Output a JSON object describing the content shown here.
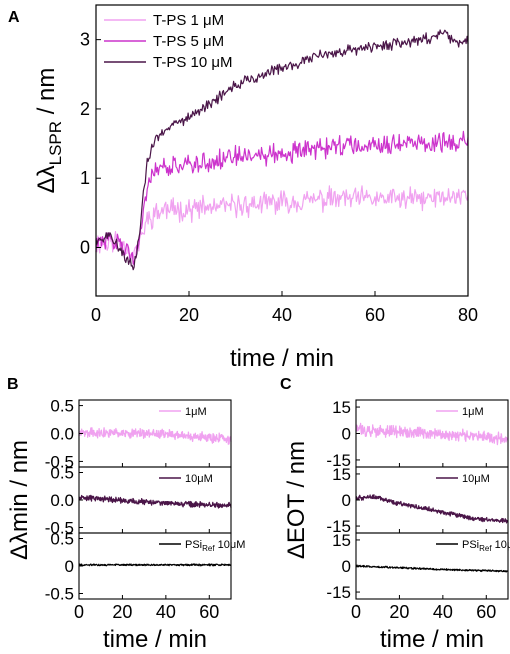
{
  "chart_data": [
    {
      "panel": "A",
      "type": "line",
      "xlabel": "time / min",
      "ylabel_main": "Δλ",
      "ylabel_sub": "LSPR",
      "ylabel_unit": " / nm",
      "xlim": [
        0,
        80
      ],
      "ylim": [
        -0.7,
        3.5
      ],
      "xticks": [
        0,
        20,
        40,
        60,
        80
      ],
      "yticks": [
        0,
        1,
        2,
        3
      ],
      "legend_position": "top-left",
      "series": [
        {
          "name": "T-PS 1 μM",
          "color": "#f0a2f0",
          "points": [
            [
              0,
              0.05
            ],
            [
              5,
              0.1
            ],
            [
              8,
              -0.1
            ],
            [
              9,
              0
            ],
            [
              11,
              0.4
            ],
            [
              13,
              0.5
            ],
            [
              15,
              0.55
            ],
            [
              20,
              0.55
            ],
            [
              30,
              0.6
            ],
            [
              40,
              0.65
            ],
            [
              50,
              0.7
            ],
            [
              60,
              0.7
            ],
            [
              70,
              0.7
            ],
            [
              80,
              0.75
            ]
          ],
          "noise": 0.2
        },
        {
          "name": "T-PS 5 μM",
          "color": "#cc33cc",
          "points": [
            [
              0,
              0.05
            ],
            [
              5,
              0.1
            ],
            [
              8,
              -0.1
            ],
            [
              9,
              0
            ],
            [
              11,
              0.85
            ],
            [
              13,
              1.1
            ],
            [
              16,
              1.15
            ],
            [
              20,
              1.2
            ],
            [
              30,
              1.3
            ],
            [
              40,
              1.35
            ],
            [
              50,
              1.45
            ],
            [
              60,
              1.5
            ],
            [
              70,
              1.5
            ],
            [
              80,
              1.55
            ]
          ],
          "noise": 0.18
        },
        {
          "name": "T-PS 10 μM",
          "color": "#4a1548",
          "points": [
            [
              0,
              0.1
            ],
            [
              3,
              0.15
            ],
            [
              6,
              -0.1
            ],
            [
              8,
              -0.3
            ],
            [
              9,
              0
            ],
            [
              11,
              1.25
            ],
            [
              13,
              1.6
            ],
            [
              16,
              1.75
            ],
            [
              20,
              1.9
            ],
            [
              25,
              2.1
            ],
            [
              30,
              2.35
            ],
            [
              40,
              2.6
            ],
            [
              50,
              2.8
            ],
            [
              60,
              2.9
            ],
            [
              70,
              3.0
            ],
            [
              75,
              3.1
            ],
            [
              78,
              2.95
            ],
            [
              80,
              3.0
            ]
          ],
          "noise": 0.1
        }
      ]
    },
    {
      "panel": "B",
      "type": "line",
      "xlabel": "time / min",
      "ylabel_main": "Δλmin / nm",
      "xlim": [
        0,
        70
      ],
      "xticks": [
        0,
        20,
        40,
        60
      ],
      "subplots": [
        {
          "label": "1μM",
          "color": "#f0a2f0",
          "ylim": [
            -0.6,
            0.6
          ],
          "yticks": [
            0.5,
            0.0,
            -0.5
          ],
          "yticklabels": [
            "0.5",
            "0.0",
            "-0.5"
          ],
          "points": [
            [
              0,
              0.02
            ],
            [
              35,
              0.0
            ],
            [
              70,
              -0.1
            ]
          ],
          "noise": 0.1
        },
        {
          "label": "10μM",
          "color": "#4a1548",
          "ylim": [
            -0.6,
            0.6
          ],
          "yticks": [
            0.5,
            0.0,
            -0.5
          ],
          "yticklabels": [
            "0.5",
            "0.0",
            "-0.5"
          ],
          "points": [
            [
              0,
              0.05
            ],
            [
              35,
              -0.05
            ],
            [
              70,
              -0.1
            ]
          ],
          "noise": 0.06
        },
        {
          "label": "PSi",
          "label_sub": "Ref",
          "label_tail": " 10μM",
          "color": "#000000",
          "ylim": [
            -0.6,
            0.6
          ],
          "yticks": [
            0.5,
            0,
            -0.5
          ],
          "yticklabels": [
            "0.5",
            "0",
            "-0.5"
          ],
          "points": [
            [
              0,
              0.02
            ],
            [
              70,
              0.02
            ]
          ],
          "noise": 0.02
        }
      ]
    },
    {
      "panel": "C",
      "type": "line",
      "xlabel": "time / min",
      "ylabel_main": "ΔEOT / nm",
      "xlim": [
        0,
        70
      ],
      "xticks": [
        0,
        20,
        40,
        60
      ],
      "subplots": [
        {
          "label": "1μM",
          "color": "#f0a2f0",
          "ylim": [
            -19,
            19
          ],
          "yticks": [
            15,
            0,
            -15
          ],
          "yticklabels": [
            "15",
            "0",
            "-15"
          ],
          "points": [
            [
              0,
              2
            ],
            [
              35,
              0
            ],
            [
              70,
              -3
            ]
          ],
          "noise": 4
        },
        {
          "label": "10μM",
          "color": "#4a1548",
          "ylim": [
            -19,
            19
          ],
          "yticks": [
            15,
            0,
            -15
          ],
          "yticklabels": [
            "15",
            "0",
            "-15"
          ],
          "points": [
            [
              0,
              1
            ],
            [
              8,
              2
            ],
            [
              20,
              -2
            ],
            [
              40,
              -7
            ],
            [
              55,
              -11
            ],
            [
              70,
              -12
            ]
          ],
          "noise": 1.6
        },
        {
          "label": "PSi",
          "label_sub": "Ref",
          "label_tail": " 10μM",
          "color": "#000000",
          "ylim": [
            -19,
            19
          ],
          "yticks": [
            15,
            0,
            -15
          ],
          "yticklabels": [
            "15",
            "0",
            "-15"
          ],
          "points": [
            [
              0,
              0
            ],
            [
              20,
              -1
            ],
            [
              40,
              -2
            ],
            [
              70,
              -3
            ]
          ],
          "noise": 0.6
        }
      ]
    }
  ]
}
